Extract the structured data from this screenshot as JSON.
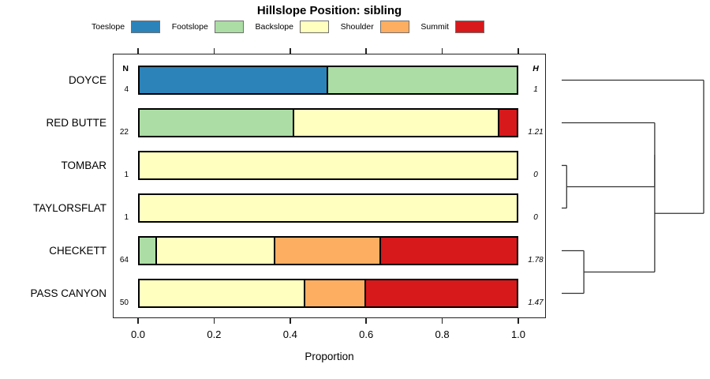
{
  "headers": {
    "n": "N",
    "h": "H"
  },
  "chart_data": {
    "type": "bar",
    "orientation": "horizontal-stacked",
    "title": "Hillslope Position: sibling",
    "xlabel": "Proportion",
    "xlim": [
      0,
      1
    ],
    "x_ticks": [
      "0.0",
      "0.2",
      "0.4",
      "0.6",
      "0.8",
      "1.0"
    ],
    "grid": false,
    "legend_position": "top",
    "categories": [
      "Toeslope",
      "Footslope",
      "Backslope",
      "Shoulder",
      "Summit"
    ],
    "colors": {
      "Toeslope": "#2B83BA",
      "Footslope": "#ABDDA4",
      "Backslope": "#FFFFBF",
      "Shoulder": "#FDAE61",
      "Summit": "#D7191C"
    },
    "rows": [
      {
        "label": "DOYCE",
        "n": "4",
        "h": "1",
        "segments": [
          {
            "category": "Toeslope",
            "value": 0.5
          },
          {
            "category": "Footslope",
            "value": 0.5
          }
        ]
      },
      {
        "label": "RED BUTTE",
        "n": "22",
        "h": "1.21",
        "segments": [
          {
            "category": "Footslope",
            "value": 0.409
          },
          {
            "category": "Backslope",
            "value": 0.546
          },
          {
            "category": "Summit",
            "value": 0.045
          }
        ]
      },
      {
        "label": "TOMBAR",
        "n": "1",
        "h": "0",
        "segments": [
          {
            "category": "Backslope",
            "value": 1.0
          }
        ]
      },
      {
        "label": "TAYLORSFLAT",
        "n": "1",
        "h": "0",
        "segments": [
          {
            "category": "Backslope",
            "value": 1.0
          }
        ]
      },
      {
        "label": "CHECKETT",
        "n": "64",
        "h": "1.78",
        "segments": [
          {
            "category": "Footslope",
            "value": 0.047
          },
          {
            "category": "Backslope",
            "value": 0.312
          },
          {
            "category": "Shoulder",
            "value": 0.281
          },
          {
            "category": "Summit",
            "value": 0.36
          }
        ]
      },
      {
        "label": "PASS CANYON",
        "n": "50",
        "h": "1.47",
        "segments": [
          {
            "category": "Backslope",
            "value": 0.44
          },
          {
            "category": "Shoulder",
            "value": 0.16
          },
          {
            "category": "Summit",
            "value": 0.4
          }
        ]
      }
    ]
  },
  "dendrogram": {
    "root": {
      "height": 1.0,
      "children": [
        {
          "leaf": "DOYCE"
        },
        {
          "height": 0.655,
          "children": [
            {
              "height": 0.655,
              "children": [
                {
                  "leaf": "RED BUTTE"
                },
                {
                  "height": 0.035,
                  "children": [
                    {
                      "leaf": "TOMBAR"
                    },
                    {
                      "leaf": "TAYLORSFLAT"
                    }
                  ]
                }
              ]
            },
            {
              "height": 0.156,
              "children": [
                {
                  "leaf": "CHECKETT"
                },
                {
                  "leaf": "PASS CANYON"
                }
              ]
            }
          ]
        }
      ]
    }
  }
}
